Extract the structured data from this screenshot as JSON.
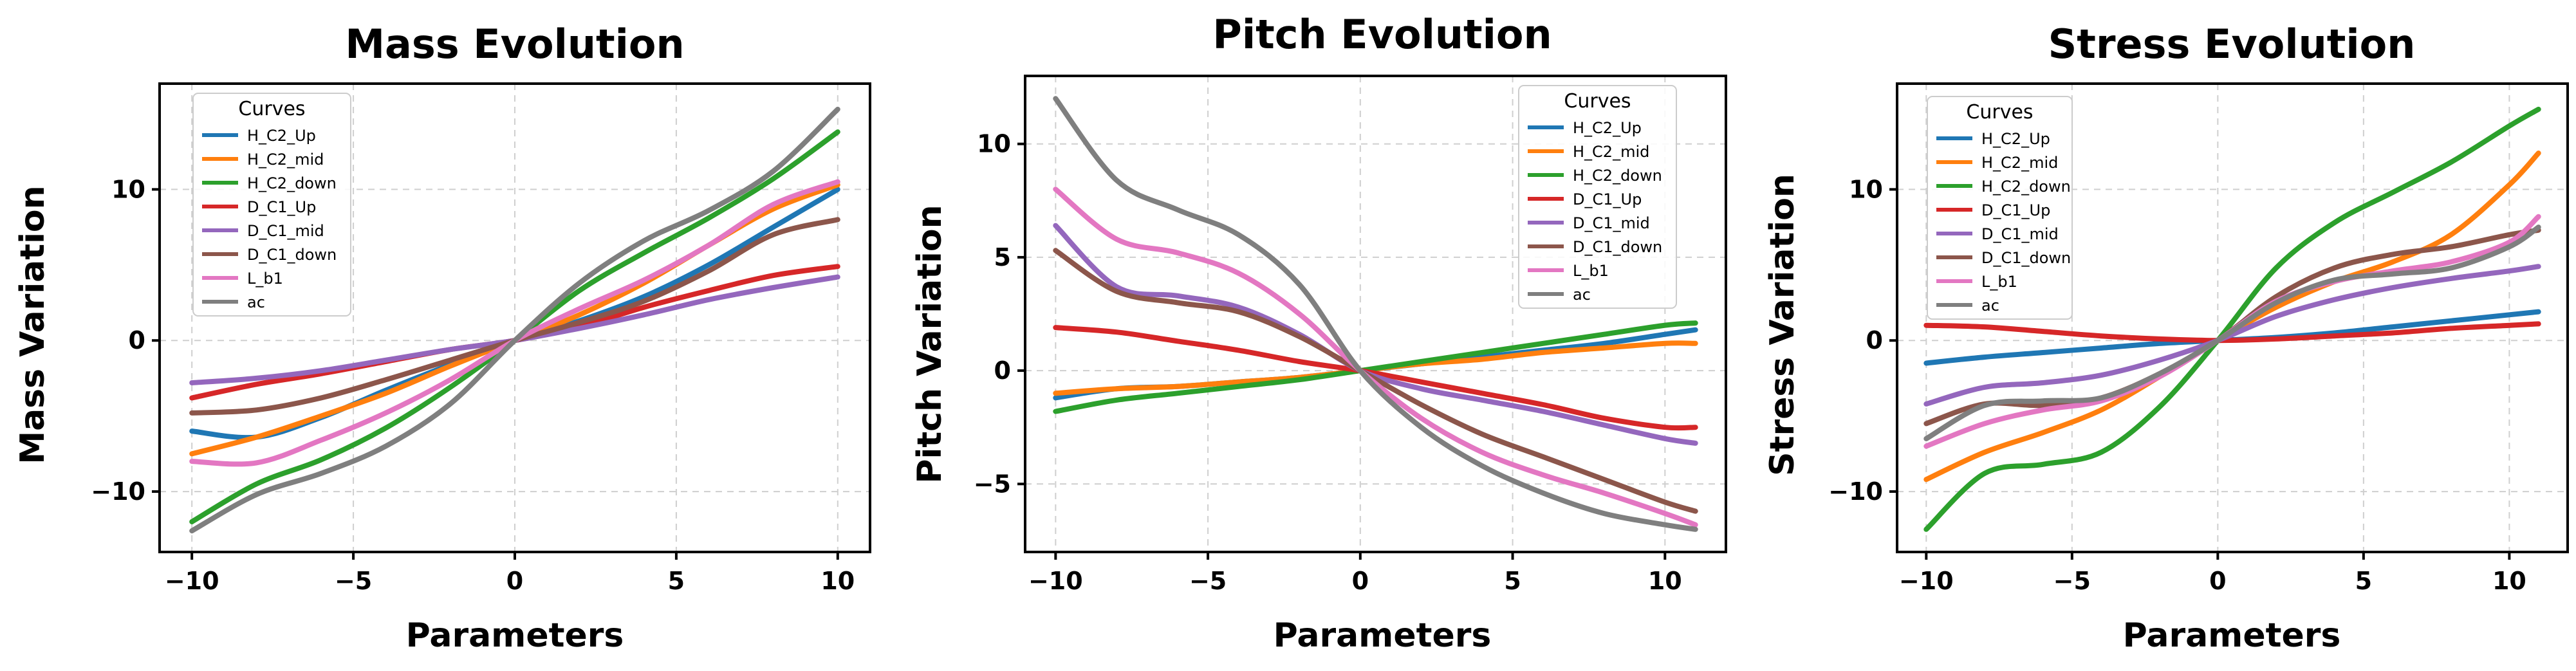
{
  "figure": {
    "background": "#ffffff"
  },
  "legend": {
    "title": "Curves",
    "labels": [
      "H_C2_Up",
      "H_C2_mid",
      "H_C2_down",
      "D_C1_Up",
      "D_C1_mid",
      "D_C1_down",
      "L_b1",
      "ac"
    ],
    "colors": [
      "#1f77b4",
      "#ff7f0e",
      "#2ca02c",
      "#d62728",
      "#9467bd",
      "#8c564b",
      "#e377c2",
      "#7f7f7f"
    ]
  },
  "chart_data": [
    {
      "type": "line",
      "title": "Mass Evolution",
      "xlabel": "Parameters",
      "ylabel": "Mass Variation",
      "xlim": [
        -11,
        11
      ],
      "ylim": [
        -14,
        17
      ],
      "xticks": [
        -10,
        -5,
        0,
        5,
        10
      ],
      "yticks": [
        -10,
        0,
        10
      ],
      "grid": true,
      "legend_loc": "top-left",
      "x": [
        -10,
        -8,
        -6,
        -4,
        -2,
        0,
        2,
        4,
        6,
        8,
        10
      ],
      "series": [
        {
          "name": "H_C2_Up",
          "values": [
            -6,
            -6.4,
            -5.1,
            -3.3,
            -1.6,
            0,
            1.3,
            2.9,
            5.0,
            7.5,
            10
          ]
        },
        {
          "name": "H_C2_mid",
          "values": [
            -7.5,
            -6.4,
            -5.0,
            -3.5,
            -1.7,
            0,
            1.7,
            3.8,
            6.3,
            8.7,
            10.3
          ]
        },
        {
          "name": "H_C2_down",
          "values": [
            -12,
            -9.5,
            -7.9,
            -5.8,
            -3.1,
            0,
            3.3,
            5.8,
            8.1,
            10.7,
            13.8
          ]
        },
        {
          "name": "D_C1_Up",
          "values": [
            -3.8,
            -2.9,
            -2.2,
            -1.4,
            -0.6,
            0,
            0.9,
            2.2,
            3.3,
            4.3,
            4.9
          ]
        },
        {
          "name": "D_C1_mid",
          "values": [
            -2.8,
            -2.5,
            -2.0,
            -1.3,
            -0.6,
            0,
            0.8,
            1.7,
            2.7,
            3.5,
            4.2
          ]
        },
        {
          "name": "D_C1_down",
          "values": [
            -4.8,
            -4.6,
            -3.8,
            -2.6,
            -1.3,
            0,
            1.2,
            2.6,
            4.6,
            7.0,
            8.0
          ]
        },
        {
          "name": "L_b1",
          "values": [
            -8.0,
            -8.1,
            -6.6,
            -4.8,
            -2.6,
            0,
            2.1,
            4.0,
            6.3,
            9.0,
            10.5
          ]
        },
        {
          "name": "ac",
          "values": [
            -12.6,
            -10.2,
            -8.8,
            -7.0,
            -4.2,
            0,
            3.8,
            6.6,
            8.6,
            11.2,
            15.3
          ]
        }
      ]
    },
    {
      "type": "line",
      "title": "Pitch Evolution",
      "xlabel": "Parameters",
      "ylabel": "Pitch Variation",
      "xlim": [
        -11,
        12
      ],
      "ylim": [
        -8,
        13
      ],
      "xticks": [
        -10,
        -5,
        0,
        5,
        10
      ],
      "yticks": [
        -5,
        0,
        5,
        10
      ],
      "grid": true,
      "legend_loc": "top-right",
      "x": [
        -10,
        -8,
        -6,
        -4,
        -2,
        0,
        2,
        4,
        6,
        8,
        10,
        11
      ],
      "series": [
        {
          "name": "H_C2_Up",
          "values": [
            -1.2,
            -0.8,
            -0.7,
            -0.5,
            -0.3,
            0,
            0.3,
            0.6,
            0.9,
            1.2,
            1.6,
            1.8
          ]
        },
        {
          "name": "H_C2_mid",
          "values": [
            -1.0,
            -0.8,
            -0.7,
            -0.5,
            -0.3,
            0,
            0.3,
            0.5,
            0.8,
            1.0,
            1.2,
            1.2
          ]
        },
        {
          "name": "H_C2_down",
          "values": [
            -1.8,
            -1.3,
            -1.0,
            -0.7,
            -0.4,
            0,
            0.4,
            0.8,
            1.2,
            1.6,
            2.0,
            2.1
          ]
        },
        {
          "name": "D_C1_Up",
          "values": [
            1.9,
            1.7,
            1.3,
            0.9,
            0.4,
            0,
            -0.5,
            -1.0,
            -1.5,
            -2.1,
            -2.5,
            -2.5
          ]
        },
        {
          "name": "D_C1_mid",
          "values": [
            6.4,
            3.7,
            3.3,
            2.8,
            1.6,
            0,
            -0.8,
            -1.3,
            -1.8,
            -2.4,
            -3.0,
            -3.2
          ]
        },
        {
          "name": "D_C1_down",
          "values": [
            5.3,
            3.5,
            3.0,
            2.6,
            1.5,
            0,
            -1.5,
            -2.8,
            -3.8,
            -4.8,
            -5.8,
            -6.2
          ]
        },
        {
          "name": "L_b1",
          "values": [
            8.0,
            5.8,
            5.2,
            4.3,
            2.5,
            0,
            -2.1,
            -3.6,
            -4.6,
            -5.4,
            -6.3,
            -6.8
          ]
        },
        {
          "name": "ac",
          "values": [
            12.0,
            8.4,
            7.1,
            6.0,
            3.8,
            0,
            -2.5,
            -4.2,
            -5.4,
            -6.3,
            -6.8,
            -7.0
          ]
        }
      ]
    },
    {
      "type": "line",
      "title": "Stress Evolution",
      "xlabel": "Parameters",
      "ylabel": "Stress Variation",
      "xlim": [
        -11,
        12
      ],
      "ylim": [
        -14,
        17
      ],
      "xticks": [
        -10,
        -5,
        0,
        5,
        10
      ],
      "yticks": [
        -10,
        0,
        10
      ],
      "grid": true,
      "legend_loc": "top-left",
      "x": [
        -10,
        -8,
        -6,
        -4,
        -2,
        0,
        2,
        4,
        6,
        8,
        10,
        11
      ],
      "series": [
        {
          "name": "H_C2_Up",
          "values": [
            -1.5,
            -1.1,
            -0.8,
            -0.5,
            -0.2,
            0,
            0.2,
            0.5,
            0.9,
            1.3,
            1.7,
            1.9
          ]
        },
        {
          "name": "H_C2_mid",
          "values": [
            -9.2,
            -7.4,
            -6.1,
            -4.6,
            -2.4,
            0,
            2.2,
            3.9,
            5.2,
            7.0,
            10.3,
            12.4
          ]
        },
        {
          "name": "H_C2_down",
          "values": [
            -12.5,
            -8.8,
            -8.2,
            -7.4,
            -4.4,
            0,
            4.8,
            7.8,
            9.8,
            11.8,
            14.2,
            15.3
          ]
        },
        {
          "name": "D_C1_Up",
          "values": [
            1.0,
            0.9,
            0.6,
            0.3,
            0.1,
            0,
            0.1,
            0.3,
            0.5,
            0.8,
            1.0,
            1.1
          ]
        },
        {
          "name": "D_C1_mid",
          "values": [
            -4.2,
            -3.1,
            -2.8,
            -2.3,
            -1.3,
            0,
            1.6,
            2.7,
            3.5,
            4.1,
            4.6,
            4.9
          ]
        },
        {
          "name": "D_C1_down",
          "values": [
            -5.5,
            -4.2,
            -4.3,
            -3.8,
            -2.2,
            0,
            2.9,
            4.8,
            5.7,
            6.2,
            7.0,
            7.3
          ]
        },
        {
          "name": "L_b1",
          "values": [
            -7.0,
            -5.5,
            -4.6,
            -4.0,
            -2.4,
            0,
            2.6,
            3.9,
            4.6,
            5.2,
            6.5,
            8.2
          ]
        },
        {
          "name": "ac",
          "values": [
            -6.5,
            -4.3,
            -4.0,
            -3.8,
            -2.2,
            0,
            2.5,
            4.0,
            4.4,
            4.8,
            6.2,
            7.5
          ]
        }
      ]
    }
  ]
}
